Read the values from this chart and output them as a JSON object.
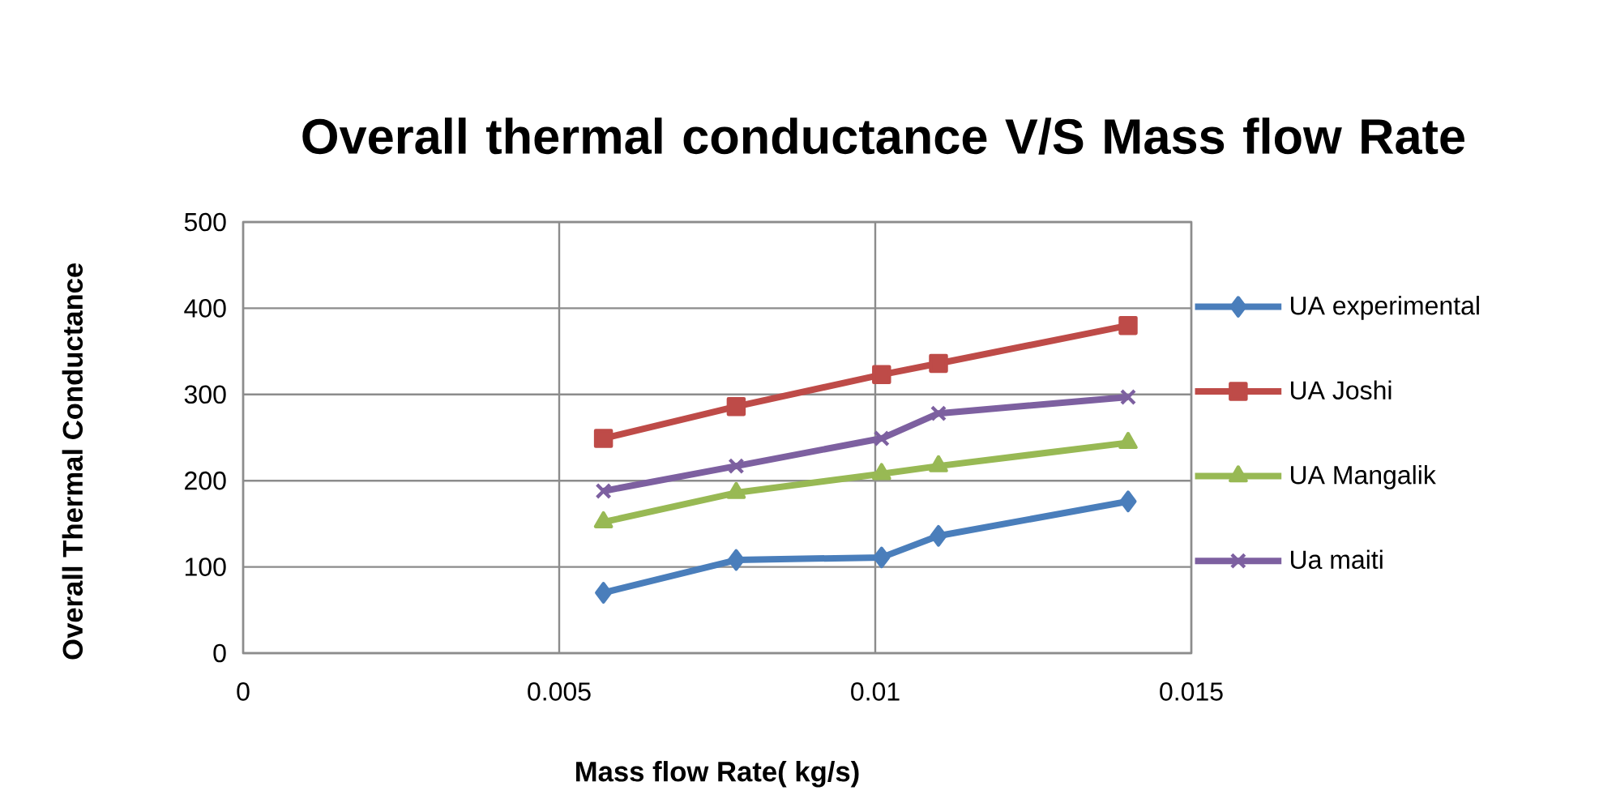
{
  "chart_data": {
    "type": "line",
    "title": "Overall thermal conductance V/S Mass flow Rate",
    "xlabel": "Mass flow Rate( kg/s)",
    "ylabel": "Overall Thermal Conductance",
    "x": [
      0.0057,
      0.0078,
      0.0101,
      0.011,
      0.014
    ],
    "series": [
      {
        "name": "UA experimental",
        "color": "#4a7ebb",
        "marker": "diamond",
        "values": [
          70,
          108,
          111,
          136,
          176
        ]
      },
      {
        "name": "UA Joshi",
        "color": "#be4b48",
        "marker": "square",
        "values": [
          249,
          286,
          323,
          336,
          380
        ]
      },
      {
        "name": "UA Mangalik",
        "color": "#98b954",
        "marker": "triangle",
        "values": [
          152,
          186,
          208,
          217,
          244
        ]
      },
      {
        "name": "Ua maiti",
        "color": "#7d60a0",
        "marker": "cross",
        "values": [
          188,
          217,
          249,
          278,
          297
        ]
      }
    ],
    "xlim": [
      0,
      0.015
    ],
    "xticks": [
      0,
      0.005,
      0.01,
      0.015
    ],
    "ylim": [
      0,
      500
    ],
    "yticks": [
      0,
      100,
      200,
      300,
      400,
      500
    ],
    "grid": true,
    "legend": "right",
    "line_style": "solid"
  }
}
